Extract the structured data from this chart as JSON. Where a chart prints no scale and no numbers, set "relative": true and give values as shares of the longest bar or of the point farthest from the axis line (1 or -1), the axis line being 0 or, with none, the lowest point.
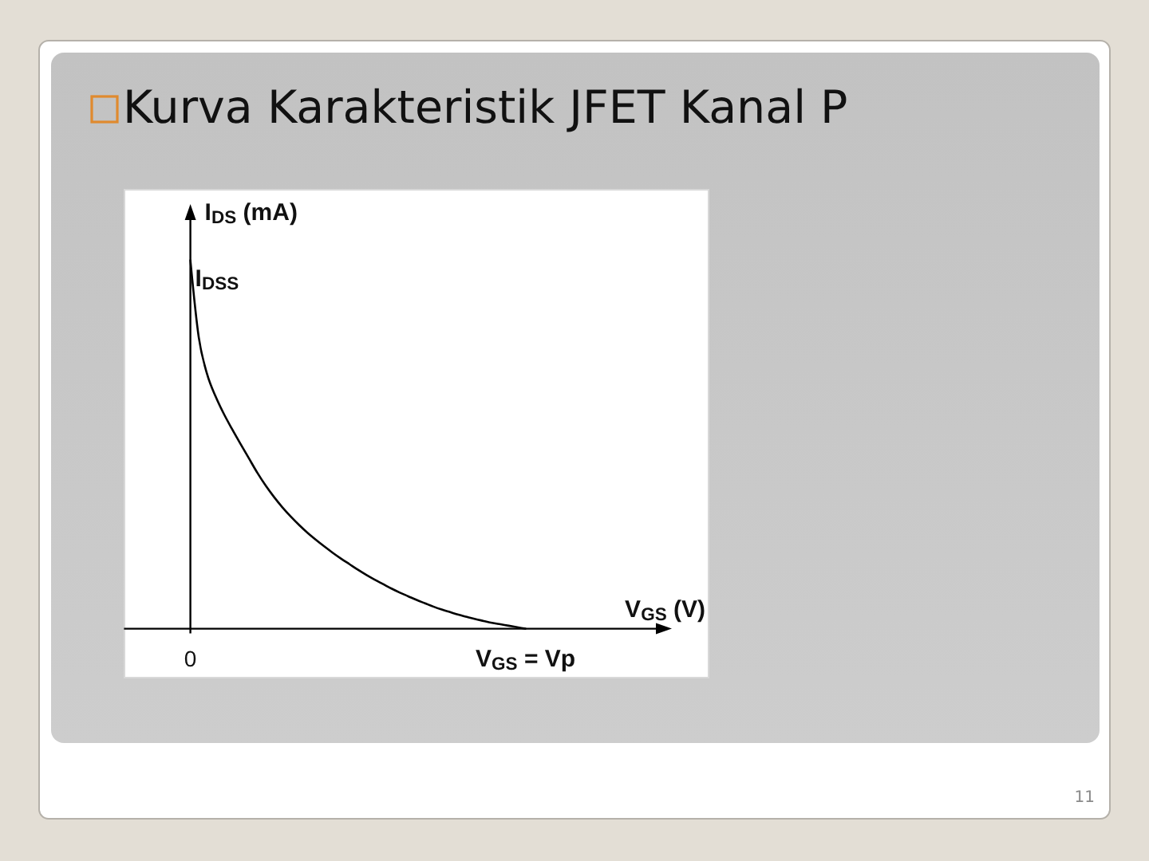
{
  "chart_data": {
    "type": "line",
    "title": "Kurva Karakteristik JFET Kanal P",
    "xlabel": "V$_{GS}$ (V)",
    "ylabel": "I$_{DS}$ (mA)",
    "relative": true,
    "categories": [
      "0",
      null,
      null,
      null,
      null,
      null,
      null,
      null,
      null,
      null,
      null,
      null,
      null,
      null,
      null,
      null,
      null,
      null,
      null,
      null,
      null,
      null,
      null,
      null,
      null,
      null,
      null,
      null,
      null,
      null,
      null,
      null,
      null,
      null,
      null,
      null,
      null,
      null,
      null,
      null,
      "V$_{GS}$ = Vp"
    ],
    "series": [
      {
        "color": "#000000",
        "values": [
          1,
          0.791,
          0.691,
          0.631,
          0.583,
          0.541,
          0.501,
          0.462,
          0.423,
          0.388,
          0.357,
          0.329,
          0.304,
          0.281,
          0.26,
          0.241,
          0.223,
          0.206,
          0.19,
          0.175,
          0.16,
          0.146,
          0.133,
          0.121,
          0.109,
          0.098,
          0.088,
          0.078,
          0.069,
          0.06,
          0.052,
          0.045,
          0.038,
          0.032,
          0.026,
          0.021,
          0.016,
          0.012,
          0.008,
          0.004,
          0
        ]
      }
    ],
    "annotations": [
      "I$_{DSS}$",
      "11"
    ]
  }
}
